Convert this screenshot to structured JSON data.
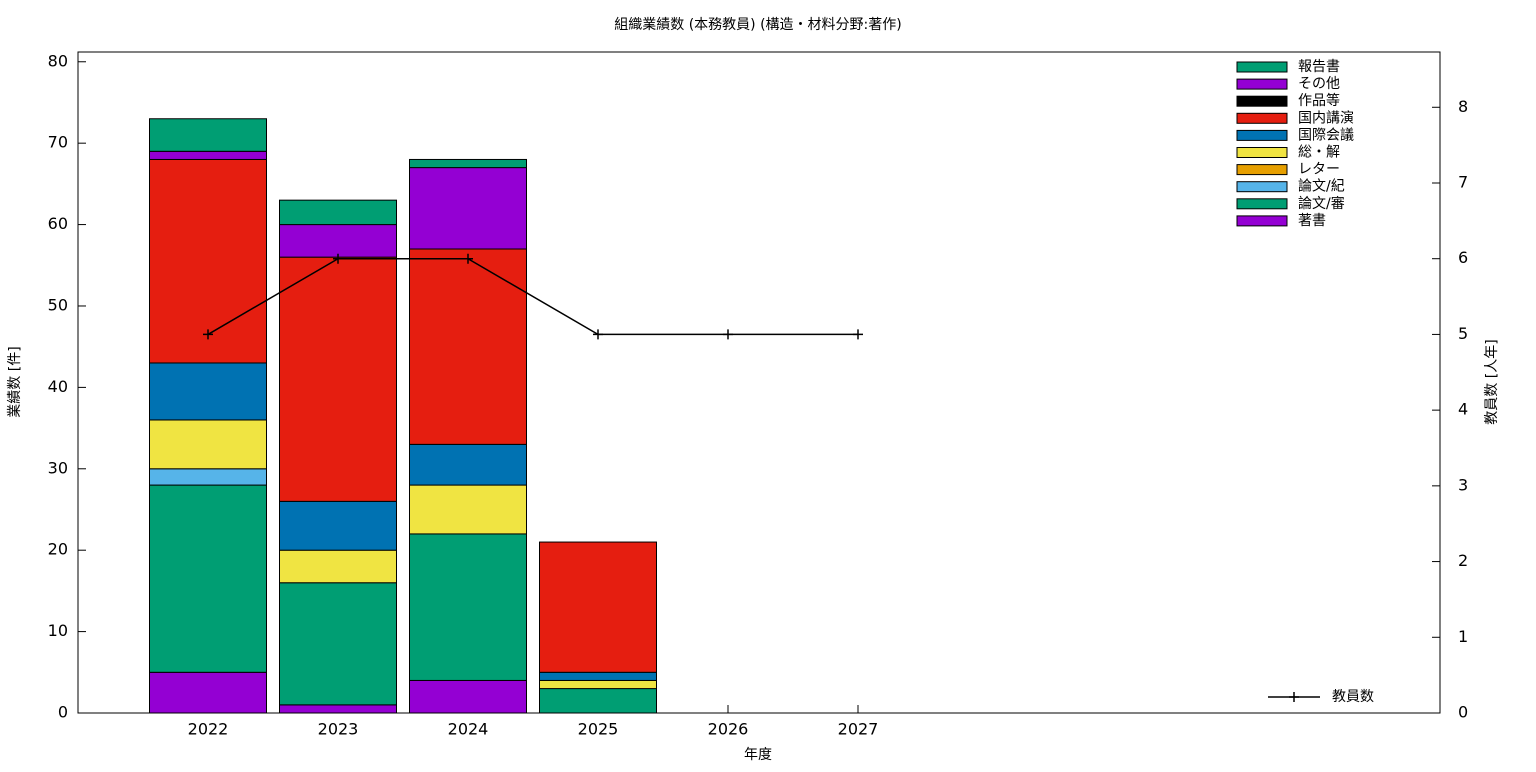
{
  "chart_data": {
    "type": "bar",
    "stacked": true,
    "title": "組織業績数 (本務教員) (構造・材料分野:著作)",
    "x_label": "年度",
    "y_label": "業績数 [件]",
    "y2_label": "教員数 [人年]",
    "categories": [
      "2022",
      "2023",
      "2024",
      "2025",
      "2026",
      "2027"
    ],
    "series": [
      {
        "name": "著書",
        "color": "#9400d3",
        "values": [
          5,
          1,
          4,
          0,
          0,
          0
        ]
      },
      {
        "name": "論文/審",
        "color": "#009e73",
        "values": [
          23,
          15,
          18,
          3,
          0,
          0
        ]
      },
      {
        "name": "論文/紀",
        "color": "#56b4e9",
        "values": [
          2,
          0,
          0,
          0,
          0,
          0
        ]
      },
      {
        "name": "レター",
        "color": "#e69f00",
        "values": [
          0,
          0,
          0,
          0,
          0,
          0
        ]
      },
      {
        "name": "総・解",
        "color": "#f0e442",
        "values": [
          6,
          4,
          6,
          1,
          0,
          0
        ]
      },
      {
        "name": "国際会議",
        "color": "#0072b2",
        "values": [
          7,
          6,
          5,
          1,
          0,
          0
        ]
      },
      {
        "name": "国内講演",
        "color": "#e51e10",
        "values": [
          25,
          30,
          24,
          16,
          0,
          0
        ]
      },
      {
        "name": "作品等",
        "color": "#000000",
        "values": [
          0,
          0,
          0,
          0,
          0,
          0
        ]
      },
      {
        "name": "その他",
        "color": "#9400d3",
        "values": [
          1,
          4,
          10,
          0,
          0,
          0
        ]
      },
      {
        "name": "報告書",
        "color": "#009e73",
        "values": [
          4,
          3,
          1,
          0,
          0,
          0
        ]
      },
      {
        "name": "教員数",
        "color": "#000000",
        "type": "line",
        "axis": "y2",
        "values": [
          5,
          6,
          6,
          5,
          5,
          5
        ]
      }
    ],
    "ylim": [
      0,
      81.2
    ],
    "yticks": [
      0,
      10,
      20,
      30,
      40,
      50,
      60,
      70,
      80
    ],
    "y2lim": [
      0,
      8.73
    ],
    "y2ticks": [
      0,
      1,
      2,
      3,
      4,
      5,
      6,
      7,
      8
    ]
  }
}
